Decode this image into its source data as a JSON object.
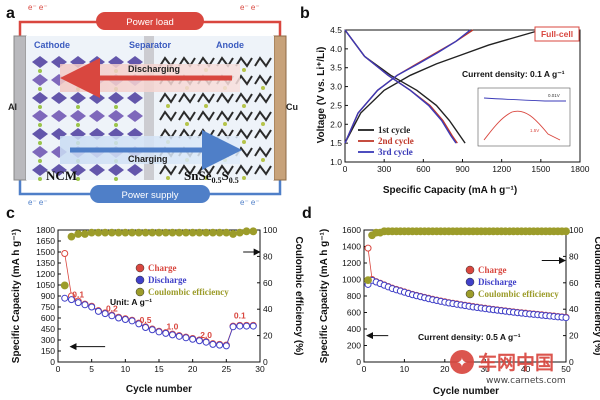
{
  "panels": {
    "a": {
      "letter": "a",
      "power_load": "Power load",
      "power_supply": "Power supply",
      "cathode": "Cathode",
      "separator": "Separator",
      "anode": "Anode",
      "discharging": "Discharging",
      "charging": "Charging",
      "al": "Al",
      "cu": "Cu",
      "ncm": "NCM",
      "sn_main": "SnSe",
      "sn_sub1": "0.5",
      "sn_s": "S",
      "sn_sub2": "0.5",
      "electron_label": "e⁻ e⁻",
      "colors": {
        "load_red": "#d9473f",
        "supply_blue": "#4f7fc8",
        "cathode_blue": "#3b5bbf",
        "anode_dark": "#2b2b2b"
      }
    },
    "b": {
      "letter": "b",
      "badge": "Full-cell",
      "current_density": "Current density: 0.1 A g⁻¹",
      "inset_texts": [
        "0.01V",
        "1.5V"
      ]
    },
    "c": {
      "letter": "c",
      "unit_note": "Unit: A g⁻¹",
      "rate_labels": [
        "0.1",
        "0.2",
        "0.5",
        "1.0",
        "2.0",
        "0.1"
      ]
    },
    "d": {
      "letter": "d",
      "current_density": "Current density: 0.5 A g⁻¹"
    }
  },
  "watermark": {
    "brand": "车网中国",
    "url": "www.carnets.com"
  },
  "chart_data": [
    {
      "type": "line",
      "panel": "b",
      "xlabel": "Specific Capacity (mA h g⁻¹)",
      "ylabel": "Voltage (V vs. Li⁺/Li)",
      "xlim": [
        0,
        1800
      ],
      "ylim": [
        1.0,
        4.5
      ],
      "xticks": [
        "0",
        "300",
        "600",
        "900",
        "1200",
        "1500",
        "1800"
      ],
      "yticks": [
        "1.0",
        "1.5",
        "2.0",
        "2.5",
        "3.0",
        "3.5",
        "4.0",
        "4.5"
      ],
      "legend_position": "bottom-left",
      "series": [
        {
          "name": "1st cycle",
          "color": "#222222",
          "charge": [
            [
              0,
              1.5
            ],
            [
              120,
              2.3
            ],
            [
              300,
              2.9
            ],
            [
              500,
              3.3
            ],
            [
              700,
              3.6
            ],
            [
              900,
              3.85
            ],
            [
              1100,
              4.1
            ],
            [
              1300,
              4.3
            ],
            [
              1500,
              4.5
            ]
          ],
          "discharge": [
            [
              0,
              4.5
            ],
            [
              150,
              3.8
            ],
            [
              350,
              3.3
            ],
            [
              550,
              2.9
            ],
            [
              700,
              2.5
            ],
            [
              800,
              2.1
            ],
            [
              880,
              1.7
            ],
            [
              920,
              1.5
            ]
          ]
        },
        {
          "name": "2nd cycle",
          "color": "#c0392b",
          "charge": [
            [
              0,
              1.5
            ],
            [
              100,
              2.3
            ],
            [
              250,
              2.9
            ],
            [
              400,
              3.3
            ],
            [
              550,
              3.6
            ],
            [
              700,
              3.9
            ],
            [
              850,
              4.2
            ],
            [
              980,
              4.5
            ]
          ],
          "discharge": [
            [
              0,
              4.5
            ],
            [
              150,
              3.8
            ],
            [
              330,
              3.3
            ],
            [
              500,
              2.9
            ],
            [
              650,
              2.5
            ],
            [
              750,
              2.1
            ],
            [
              820,
              1.7
            ],
            [
              860,
              1.5
            ]
          ]
        },
        {
          "name": "3rd cycle",
          "color": "#3a3ab8",
          "charge": [
            [
              0,
              1.5
            ],
            [
              100,
              2.3
            ],
            [
              250,
              2.9
            ],
            [
              400,
              3.3
            ],
            [
              560,
              3.6
            ],
            [
              710,
              3.9
            ],
            [
              850,
              4.2
            ],
            [
              960,
              4.5
            ]
          ],
          "discharge": [
            [
              0,
              4.5
            ],
            [
              150,
              3.8
            ],
            [
              330,
              3.3
            ],
            [
              500,
              2.9
            ],
            [
              640,
              2.5
            ],
            [
              740,
              2.1
            ],
            [
              810,
              1.7
            ],
            [
              850,
              1.5
            ]
          ]
        }
      ]
    },
    {
      "type": "scatter",
      "panel": "c",
      "xlabel": "Cycle number",
      "ylabel": "Specific Capacity (mA h g⁻¹)",
      "y2label": "Coulombic efficiency (%)",
      "xlim": [
        0,
        30
      ],
      "ylim": [
        0,
        1800
      ],
      "y2lim": [
        0,
        100
      ],
      "xticks": [
        "0",
        "5",
        "10",
        "15",
        "20",
        "25",
        "30"
      ],
      "yticks": [
        "0",
        "150",
        "300",
        "450",
        "600",
        "750",
        "900",
        "1050",
        "1200",
        "1350",
        "1500",
        "1650",
        "1800"
      ],
      "y2ticks": [
        "0",
        "20",
        "40",
        "60",
        "80",
        "100"
      ],
      "legend_position": "center",
      "x": [
        1,
        2,
        3,
        4,
        5,
        6,
        7,
        8,
        9,
        10,
        11,
        12,
        13,
        14,
        15,
        16,
        17,
        18,
        19,
        20,
        21,
        22,
        23,
        24,
        25,
        26,
        27,
        28,
        29
      ],
      "series": [
        {
          "name": "Charge",
          "color": "#d9473f",
          "axis": "left",
          "values": [
            1480,
            900,
            830,
            790,
            760,
            700,
            670,
            640,
            610,
            590,
            570,
            530,
            480,
            450,
            420,
            400,
            380,
            360,
            340,
            320,
            300,
            280,
            250,
            240,
            230,
            490,
            500,
            500,
            500
          ]
        },
        {
          "name": "Discharge",
          "color": "#4040c8",
          "axis": "left",
          "values": [
            870,
            850,
            810,
            780,
            750,
            690,
            660,
            630,
            600,
            580,
            560,
            520,
            470,
            440,
            410,
            390,
            370,
            350,
            330,
            310,
            290,
            270,
            240,
            230,
            220,
            480,
            490,
            490,
            490
          ]
        },
        {
          "name": "Coulombic efficiency",
          "color": "#9c9c2a",
          "axis": "right",
          "values": [
            58,
            95,
            97,
            97,
            98,
            98,
            98,
            98,
            98,
            98,
            98,
            98,
            98,
            98,
            98,
            98,
            98,
            98,
            98,
            98,
            98,
            98,
            98,
            98,
            98,
            97,
            98,
            99,
            99
          ]
        }
      ]
    },
    {
      "type": "scatter",
      "panel": "d",
      "xlabel": "Cycle number",
      "ylabel": "Specific Capacity (mA h g⁻¹)",
      "y2label": "Coulombic efficiency (%)",
      "xlim": [
        0,
        50
      ],
      "ylim": [
        0,
        1600
      ],
      "y2lim": [
        0,
        100
      ],
      "xticks": [
        "0",
        "10",
        "20",
        "30",
        "40",
        "50"
      ],
      "yticks": [
        "0",
        "200",
        "400",
        "600",
        "800",
        "1000",
        "1200",
        "1400",
        "1600"
      ],
      "y2ticks": [
        "0",
        "20",
        "40",
        "60",
        "80",
        "100"
      ],
      "legend_position": "top-right",
      "x": [
        1,
        2,
        3,
        4,
        5,
        6,
        7,
        8,
        9,
        10,
        11,
        12,
        13,
        14,
        15,
        16,
        17,
        18,
        19,
        20,
        21,
        22,
        23,
        24,
        25,
        26,
        27,
        28,
        29,
        30,
        31,
        32,
        33,
        34,
        35,
        36,
        37,
        38,
        39,
        40,
        41,
        42,
        43,
        44,
        45,
        46,
        47,
        48,
        49,
        50
      ],
      "series": [
        {
          "name": "Charge",
          "color": "#d9473f",
          "axis": "left",
          "values": [
            1380,
            1000,
            975,
            955,
            935,
            915,
            895,
            880,
            865,
            850,
            835,
            820,
            808,
            796,
            784,
            772,
            760,
            750,
            740,
            730,
            720,
            712,
            704,
            696,
            688,
            680,
            672,
            665,
            658,
            651,
            644,
            638,
            632,
            626,
            620,
            614,
            608,
            602,
            597,
            592,
            587,
            582,
            577,
            572,
            567,
            562,
            557,
            552,
            547,
            542
          ]
        },
        {
          "name": "Discharge",
          "color": "#4040c8",
          "axis": "left",
          "values": [
            940,
            990,
            970,
            950,
            930,
            910,
            890,
            875,
            860,
            845,
            830,
            815,
            803,
            791,
            779,
            767,
            755,
            745,
            735,
            725,
            715,
            707,
            699,
            691,
            683,
            675,
            667,
            660,
            653,
            646,
            639,
            633,
            627,
            621,
            615,
            609,
            603,
            597,
            592,
            587,
            582,
            577,
            572,
            567,
            562,
            557,
            552,
            547,
            542,
            537
          ]
        },
        {
          "name": "Coulombic efficiency",
          "color": "#9c9c2a",
          "axis": "right",
          "values": [
            62,
            96,
            98,
            98,
            99,
            99,
            99,
            99,
            99,
            99,
            99,
            99,
            99,
            99,
            99,
            99,
            99,
            99,
            99,
            99,
            99,
            99,
            99,
            99,
            99,
            99,
            99,
            99,
            99,
            99,
            99,
            99,
            99,
            99,
            99,
            99,
            99,
            99,
            99,
            99,
            99,
            99,
            99,
            99,
            99,
            99,
            99,
            99,
            99,
            99
          ]
        }
      ]
    }
  ]
}
